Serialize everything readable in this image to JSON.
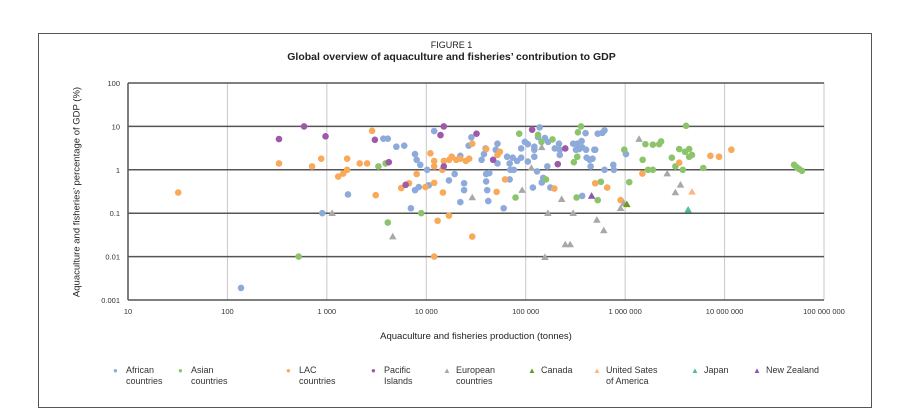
{
  "figure_number": "FIGURE 1",
  "chart_data": {
    "type": "scatter",
    "title": "Global overview of aquaculture and fisheries’ contribution to GDP",
    "xlabel": "Aquaculture and fisheries production (tonnes)",
    "ylabel": "Aquaculture and fisheries’ percentage of GDP (%)",
    "xscale": "log",
    "yscale": "log",
    "xlim": [
      10,
      100000000
    ],
    "ylim": [
      0.001,
      100
    ],
    "xticks": [
      "10",
      "100",
      "1 000",
      "10 000",
      "100 000",
      "1 000 000",
      "10 000 000",
      "100 000 000"
    ],
    "yticks": [
      "100",
      "10",
      "1",
      "0.1",
      "0.01",
      "0.001"
    ],
    "grid": true,
    "legend": "bottom",
    "series": [
      {
        "name": "African countries",
        "marker": "circle",
        "color": "#8eaadb",
        "points": [
          [
            137,
            0.0019
          ],
          [
            900,
            0.1
          ],
          [
            1630,
            0.27
          ],
          [
            3700,
            5.2
          ],
          [
            4100,
            5.2
          ],
          [
            5000,
            3.4
          ],
          [
            6000,
            3.6
          ],
          [
            7700,
            2.3
          ],
          [
            8000,
            1.7
          ],
          [
            8700,
            1.3
          ],
          [
            7700,
            0.34
          ],
          [
            8400,
            0.4
          ],
          [
            7000,
            0.13
          ],
          [
            10200,
            1.0
          ],
          [
            10600,
            0.44
          ],
          [
            12000,
            7.8
          ],
          [
            16900,
            0.57
          ],
          [
            19300,
            0.8
          ],
          [
            22000,
            0.18
          ],
          [
            24000,
            0.49
          ],
          [
            24000,
            0.34
          ],
          [
            22000,
            2.1
          ],
          [
            26700,
            3.6
          ],
          [
            28400,
            5.6
          ],
          [
            36000,
            1.7
          ],
          [
            38000,
            2.3
          ],
          [
            39500,
            3.1
          ],
          [
            40000,
            0.8
          ],
          [
            43000,
            0.84
          ],
          [
            40000,
            0.54
          ],
          [
            41000,
            0.34
          ],
          [
            42000,
            0.19
          ],
          [
            50000,
            2.9
          ],
          [
            52000,
            4.0
          ],
          [
            52000,
            1.4
          ],
          [
            60000,
            0.13
          ],
          [
            65000,
            2.0
          ],
          [
            69000,
            1.4
          ],
          [
            70000,
            1.0
          ],
          [
            74000,
            1.9
          ],
          [
            69000,
            0.6
          ],
          [
            76000,
            1.0
          ],
          [
            82000,
            1.6
          ],
          [
            90000,
            1.9
          ],
          [
            90000,
            3.1
          ],
          [
            98000,
            4.4
          ],
          [
            105000,
            3.9
          ],
          [
            105000,
            1.55
          ],
          [
            118000,
            0.39
          ],
          [
            122000,
            3.4
          ],
          [
            122000,
            2.9
          ],
          [
            122000,
            2.0
          ],
          [
            130000,
            0.92
          ],
          [
            133000,
            5.7
          ],
          [
            138000,
            9.5
          ],
          [
            145000,
            0.51
          ],
          [
            150000,
            0.65
          ],
          [
            156000,
            5.4
          ],
          [
            168000,
            4.4
          ],
          [
            165000,
            1.2
          ],
          [
            177000,
            0.39
          ],
          [
            196000,
            3.1
          ],
          [
            216000,
            4.0
          ],
          [
            220000,
            2.9
          ],
          [
            220000,
            2.2
          ],
          [
            300000,
            4.0
          ],
          [
            320000,
            2.9
          ],
          [
            330000,
            4.0
          ],
          [
            345000,
            3.0
          ],
          [
            365000,
            4.6
          ],
          [
            370000,
            3.3
          ],
          [
            400000,
            7.0
          ],
          [
            405000,
            2.9
          ],
          [
            370000,
            0.25
          ],
          [
            410000,
            1.9
          ],
          [
            440000,
            1.7
          ],
          [
            470000,
            1.8
          ],
          [
            490000,
            2.9
          ],
          [
            500000,
            2.9
          ],
          [
            450000,
            1.2
          ],
          [
            530000,
            6.8
          ],
          [
            590000,
            7.1
          ],
          [
            620000,
            8.1
          ],
          [
            620000,
            1.0
          ],
          [
            760000,
            1.3
          ],
          [
            770000,
            1.0
          ],
          [
            1020000,
            2.3
          ]
        ]
      },
      {
        "name": "Asian countries",
        "marker": "circle",
        "color": "#8cc46c",
        "points": [
          [
            520,
            0.01
          ],
          [
            3300,
            1.2
          ],
          [
            3900,
            1.4
          ],
          [
            4100,
            0.061
          ],
          [
            8900,
            0.1
          ],
          [
            86000,
            6.8
          ],
          [
            79000,
            0.23
          ],
          [
            133000,
            6.4
          ],
          [
            144000,
            4.4
          ],
          [
            160000,
            0.6
          ],
          [
            186000,
            5.0
          ],
          [
            305000,
            1.5
          ],
          [
            330000,
            2.0
          ],
          [
            325000,
            0.23
          ],
          [
            335000,
            7.3
          ],
          [
            360000,
            10
          ],
          [
            530000,
            0.2
          ],
          [
            570000,
            0.53
          ],
          [
            980000,
            2.9
          ],
          [
            1100000,
            0.52
          ],
          [
            1500000,
            1.7
          ],
          [
            1600000,
            3.9
          ],
          [
            1900000,
            3.8
          ],
          [
            2200000,
            3.9
          ],
          [
            2300000,
            4.5
          ],
          [
            1700000,
            1.0
          ],
          [
            1900000,
            1.0
          ],
          [
            2950000,
            1.9
          ],
          [
            3200000,
            1.2
          ],
          [
            3500000,
            3.0
          ],
          [
            4000000,
            2.6
          ],
          [
            4400000,
            3.0
          ],
          [
            4400000,
            2.0
          ],
          [
            4700000,
            2.2
          ],
          [
            3800000,
            1.0
          ],
          [
            4100000,
            10.3
          ],
          [
            6100000,
            1.1
          ],
          [
            50000000,
            1.3
          ],
          [
            53000000,
            1.15
          ],
          [
            56000000,
            1.05
          ],
          [
            60000000,
            0.95
          ]
        ]
      },
      {
        "name": "LAC countries",
        "marker": "circle",
        "color": "#f9a95a",
        "points": [
          [
            32,
            0.3
          ],
          [
            330,
            1.4
          ],
          [
            710,
            1.2
          ],
          [
            877,
            1.8
          ],
          [
            1300,
            0.7
          ],
          [
            1460,
            0.82
          ],
          [
            1600,
            1.0
          ],
          [
            1600,
            1.8
          ],
          [
            2140,
            1.4
          ],
          [
            2540,
            1.4
          ],
          [
            2850,
            7.9
          ],
          [
            3100,
            0.26
          ],
          [
            5600,
            0.38
          ],
          [
            6700,
            0.49
          ],
          [
            8000,
            0.8
          ],
          [
            9800,
            0.4
          ],
          [
            11000,
            2.4
          ],
          [
            12000,
            1.6
          ],
          [
            12000,
            1.2
          ],
          [
            12000,
            0.5
          ],
          [
            12000,
            0.01
          ],
          [
            13000,
            0.067
          ],
          [
            14500,
            1.0
          ],
          [
            14700,
            0.3
          ],
          [
            15000,
            1.6
          ],
          [
            16900,
            0.088
          ],
          [
            17000,
            1.7
          ],
          [
            18000,
            2.0
          ],
          [
            20000,
            1.7
          ],
          [
            22000,
            1.8
          ],
          [
            25000,
            1.6
          ],
          [
            27000,
            1.8
          ],
          [
            29000,
            4.0
          ],
          [
            29000,
            0.029
          ],
          [
            40000,
            3.0
          ],
          [
            52000,
            2.2
          ],
          [
            55000,
            2.6
          ],
          [
            51000,
            0.31
          ],
          [
            62000,
            0.6
          ],
          [
            194000,
            0.37
          ],
          [
            500000,
            0.49
          ],
          [
            660000,
            0.39
          ],
          [
            900000,
            0.2
          ],
          [
            1490000,
            0.82
          ],
          [
            3500000,
            1.46
          ],
          [
            7200000,
            2.1
          ],
          [
            8800000,
            2.0
          ],
          [
            11700000,
            2.9
          ]
        ]
      },
      {
        "name": "Pacific Islands",
        "marker": "circle",
        "color": "#9c5aa8",
        "points": [
          [
            330,
            5.1
          ],
          [
            590,
            10
          ],
          [
            970,
            5.9
          ],
          [
            3040,
            4.9
          ],
          [
            4200,
            1.5
          ],
          [
            6200,
            0.45
          ],
          [
            13900,
            6.3
          ],
          [
            15000,
            10
          ],
          [
            15000,
            1.2
          ],
          [
            32000,
            6.8
          ],
          [
            47000,
            1.7
          ],
          [
            116000,
            8.4
          ],
          [
            210000,
            1.35
          ],
          [
            250000,
            3.1
          ]
        ]
      },
      {
        "name": "European countries",
        "marker": "triangle",
        "color": "#a8a8a8",
        "points": [
          [
            1130,
            0.1
          ],
          [
            4600,
            0.029
          ],
          [
            29000,
            0.23
          ],
          [
            92000,
            0.34
          ],
          [
            114000,
            1.1
          ],
          [
            145000,
            3.3
          ],
          [
            167000,
            0.1
          ],
          [
            156000,
            0.0097
          ],
          [
            230000,
            0.21
          ],
          [
            250000,
            0.019
          ],
          [
            280000,
            0.019
          ],
          [
            300000,
            0.1
          ],
          [
            520000,
            0.07
          ],
          [
            610000,
            0.04
          ],
          [
            900000,
            0.13
          ],
          [
            970000,
            0.17
          ],
          [
            1380000,
            5.1
          ],
          [
            2650000,
            0.82
          ],
          [
            3200000,
            0.3
          ],
          [
            3600000,
            0.45
          ]
        ]
      },
      {
        "name": "Canada",
        "marker": "triangle",
        "color": "#6b9a1e",
        "points": [
          [
            1040000,
            0.16
          ]
        ]
      },
      {
        "name": "United Sates of America",
        "marker": "triangle",
        "color": "#fbb783",
        "points": [
          [
            4700000,
            0.31
          ]
        ]
      },
      {
        "name": "Japan",
        "marker": "triangle",
        "color": "#4fbf8c",
        "points": [
          [
            4300000,
            0.12
          ]
        ]
      },
      {
        "name": "New Zealand",
        "marker": "triangle",
        "color": "#8a56b0",
        "points": [
          [
            460000,
            0.25
          ]
        ]
      }
    ]
  },
  "legend": [
    {
      "l1": "African",
      "l2": "countries"
    },
    {
      "l1": "Asian",
      "l2": "countries"
    },
    {
      "l1": "LAC",
      "l2": "countries"
    },
    {
      "l1": "Pacific",
      "l2": "Islands"
    },
    {
      "l1": "European",
      "l2": "countries"
    },
    {
      "l1": "Canada",
      "l2": ""
    },
    {
      "l1": "United Sates",
      "l2": "of America"
    },
    {
      "l1": "Japan",
      "l2": ""
    },
    {
      "l1": "New Zealand",
      "l2": ""
    }
  ]
}
